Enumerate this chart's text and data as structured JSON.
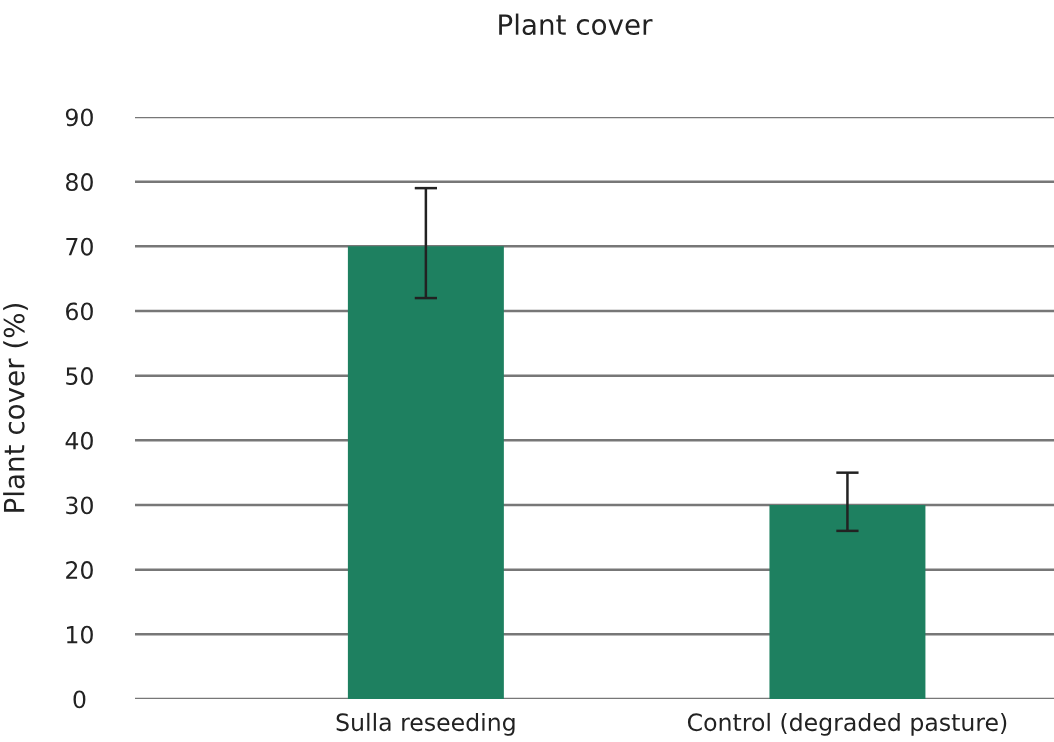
{
  "chart_data": {
    "type": "bar",
    "title": "Plant cover",
    "ylabel": "Plant cover (%)",
    "categories": [
      "Sulla reseeding",
      "Control (degraded pasture)"
    ],
    "values": [
      70,
      30
    ],
    "color": "#1e8060",
    "errors": [
      [
        62,
        79
      ],
      [
        26,
        35
      ]
    ],
    "ylim": [
      0,
      90
    ],
    "yticks": [
      0,
      10,
      20,
      30,
      40,
      50,
      60,
      70,
      80,
      90
    ],
    "grid": "y",
    "legend": false
  }
}
